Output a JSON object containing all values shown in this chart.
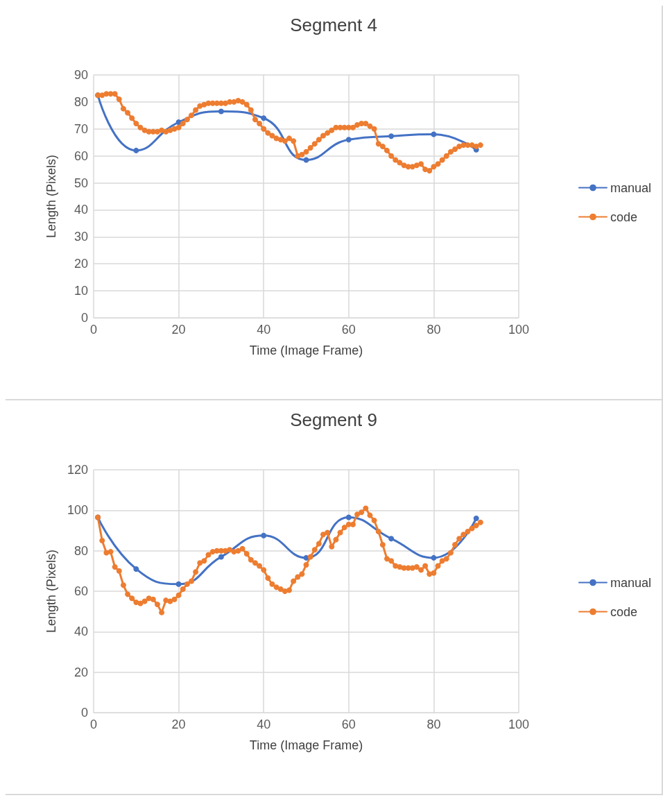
{
  "chart_data": [
    {
      "type": "line",
      "title": "Segment 4",
      "xlabel": "Time (Image Frame)",
      "ylabel": "Length (Pixels)",
      "xlim": [
        0,
        100
      ],
      "xticks": [
        0,
        20,
        40,
        60,
        80,
        100
      ],
      "ylim": [
        0,
        90
      ],
      "yticks": [
        0,
        10,
        20,
        30,
        40,
        50,
        60,
        70,
        80,
        90
      ],
      "grid": true,
      "legend": "right",
      "marker": "circle",
      "series": [
        {
          "name": "manual",
          "color": "#4472c4",
          "x": [
            1,
            10,
            20,
            30,
            40,
            50,
            60,
            70,
            80,
            90
          ],
          "values": [
            82.5,
            62,
            72.5,
            76.5,
            74,
            58.5,
            66,
            67.3,
            68,
            62.3
          ]
        },
        {
          "name": "code",
          "color": "#ed7d31",
          "x": [
            1,
            2,
            3,
            4,
            5,
            6,
            7,
            8,
            9,
            10,
            11,
            12,
            13,
            14,
            15,
            16,
            17,
            18,
            19,
            20,
            21,
            22,
            23,
            24,
            25,
            26,
            27,
            28,
            29,
            30,
            31,
            32,
            33,
            34,
            35,
            36,
            37,
            38,
            39,
            40,
            41,
            42,
            43,
            44,
            45,
            46,
            47,
            48,
            49,
            50,
            51,
            52,
            53,
            54,
            55,
            56,
            57,
            58,
            59,
            60,
            61,
            62,
            63,
            64,
            65,
            66,
            67,
            68,
            69,
            70,
            71,
            72,
            73,
            74,
            75,
            76,
            77,
            78,
            79,
            80,
            81,
            82,
            83,
            84,
            85,
            86,
            87,
            88,
            89,
            90,
            91
          ],
          "values": [
            82.5,
            82.5,
            83,
            83,
            83,
            81,
            77.5,
            76,
            74,
            72,
            70.5,
            69.5,
            69,
            69,
            69,
            69.5,
            69,
            69.5,
            70,
            70.5,
            72,
            73.5,
            75,
            77,
            78.5,
            79,
            79.5,
            79.5,
            79.5,
            79.5,
            79.5,
            80,
            80,
            80.5,
            80,
            79,
            77,
            73.5,
            72,
            70,
            68.5,
            67.5,
            66.5,
            66,
            65.5,
            66.5,
            65.5,
            60,
            60.5,
            61.5,
            63,
            64.5,
            66,
            67.5,
            68.5,
            69.5,
            70.5,
            70.5,
            70.5,
            70.5,
            70.5,
            71.5,
            72,
            72,
            71,
            70,
            64.5,
            63.5,
            62,
            60,
            58.5,
            57.5,
            56.5,
            56,
            56,
            56.5,
            57,
            55,
            54.5,
            56,
            57,
            58.5,
            60,
            61.5,
            62.5,
            63.5,
            64,
            64,
            64,
            63.5,
            64
          ]
        }
      ]
    },
    {
      "type": "line",
      "title": "Segment 9",
      "xlabel": "Time (Image Frame)",
      "ylabel": "Length (Pixels)",
      "xlim": [
        0,
        100
      ],
      "xticks": [
        0,
        20,
        40,
        60,
        80,
        100
      ],
      "ylim": [
        0,
        120
      ],
      "yticks": [
        0,
        20,
        40,
        60,
        80,
        100,
        120
      ],
      "grid": true,
      "legend": "right",
      "marker": "circle",
      "series": [
        {
          "name": "manual",
          "color": "#4472c4",
          "x": [
            1,
            10,
            20,
            30,
            40,
            50,
            60,
            70,
            80,
            90
          ],
          "values": [
            96.5,
            71,
            63.5,
            77,
            87.5,
            76.5,
            96.5,
            86,
            76.5,
            96
          ]
        },
        {
          "name": "code",
          "color": "#ed7d31",
          "x": [
            1,
            2,
            3,
            4,
            5,
            6,
            7,
            8,
            9,
            10,
            11,
            12,
            13,
            14,
            15,
            16,
            17,
            18,
            19,
            20,
            21,
            22,
            23,
            24,
            25,
            26,
            27,
            28,
            29,
            30,
            31,
            32,
            33,
            34,
            35,
            36,
            37,
            38,
            39,
            40,
            41,
            42,
            43,
            44,
            45,
            46,
            47,
            48,
            49,
            50,
            51,
            52,
            53,
            54,
            55,
            56,
            57,
            58,
            59,
            60,
            61,
            62,
            63,
            64,
            65,
            66,
            67,
            68,
            69,
            70,
            71,
            72,
            73,
            74,
            75,
            76,
            77,
            78,
            79,
            80,
            81,
            82,
            83,
            84,
            85,
            86,
            87,
            88,
            89,
            90,
            91
          ],
          "values": [
            96.5,
            85,
            79,
            79.5,
            72,
            70,
            63,
            58.5,
            56.5,
            54.5,
            54,
            55,
            56.5,
            56,
            53.5,
            49.5,
            55.5,
            55,
            56,
            58,
            61,
            63.5,
            65,
            69.5,
            74,
            75,
            78,
            79.5,
            80,
            80,
            80,
            80.5,
            79.5,
            80,
            81,
            78.5,
            75.5,
            74,
            72.5,
            70.5,
            66.5,
            63.5,
            62,
            61,
            60,
            60.5,
            65,
            67,
            68.5,
            73,
            77,
            80.5,
            83.5,
            88,
            89,
            82,
            85.5,
            89,
            91.5,
            93,
            93,
            98,
            99,
            101,
            97.5,
            95,
            89.5,
            83,
            76,
            75,
            72.5,
            72,
            71.5,
            71.5,
            71.5,
            72,
            70.5,
            72.5,
            68.5,
            69,
            72.5,
            75,
            76,
            79,
            83,
            86,
            88,
            89.5,
            91,
            92.5,
            94
          ]
        }
      ]
    }
  ]
}
